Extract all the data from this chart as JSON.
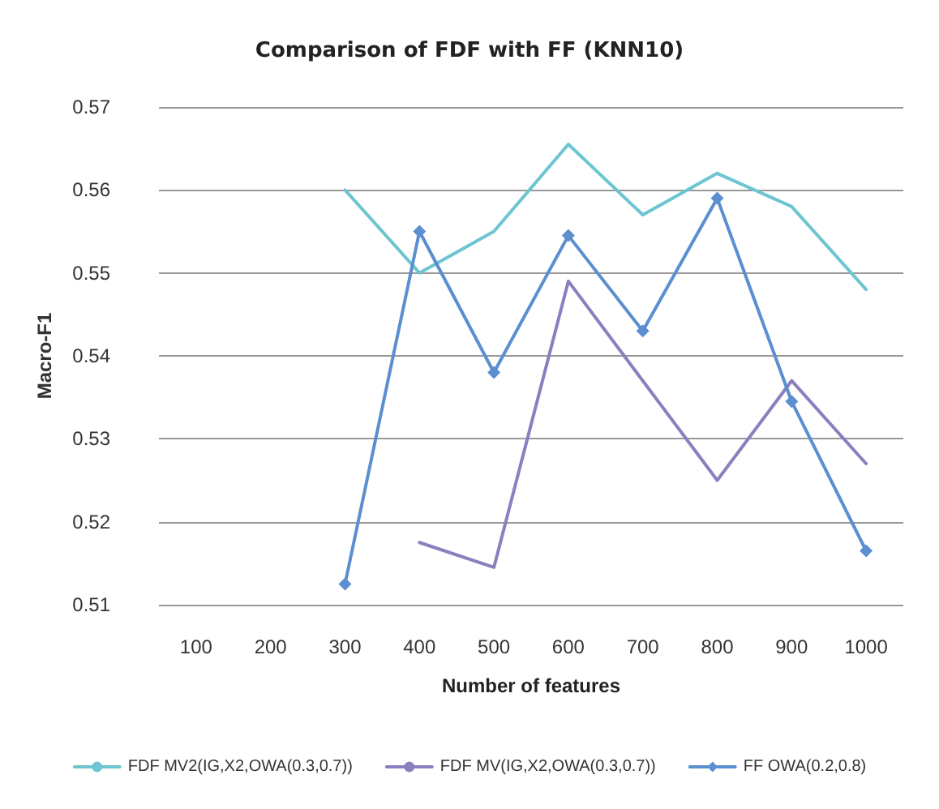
{
  "chart_data": {
    "type": "line",
    "title": "Comparison of FDF with FF (KNN10)",
    "xlabel": "Number of features",
    "ylabel": "Macro-F1",
    "categories": [
      "100",
      "200",
      "300",
      "400",
      "500",
      "600",
      "700",
      "800",
      "900",
      "1000"
    ],
    "series": [
      {
        "name": "FDF MV2(IG,X2,OWA(0.3,0.7))",
        "color": "#6cc5d0",
        "marker": "none",
        "values": [
          null,
          null,
          0.56,
          0.55,
          0.555,
          0.5655,
          0.557,
          0.562,
          0.558,
          0.548
        ]
      },
      {
        "name": "FDF MV(IG,X2,OWA(0.3,0.7))",
        "color": "#8c7fc0",
        "marker": "none",
        "values": [
          null,
          null,
          null,
          0.5175,
          0.5145,
          0.549,
          0.537,
          0.525,
          0.537,
          0.527
        ]
      },
      {
        "name": "FF OWA(0.2,0.8)",
        "color": "#5b8fd0",
        "marker": "diamond",
        "values": [
          null,
          null,
          0.5125,
          0.555,
          0.538,
          0.5545,
          0.543,
          0.559,
          0.5345,
          0.5165
        ]
      }
    ],
    "ylim": [
      0.51,
      0.57
    ],
    "yticks": [
      0.51,
      0.52,
      0.53,
      0.54,
      0.55,
      0.56,
      0.57
    ],
    "grid": "y",
    "legend": "bottom",
    "line_style": "solid"
  }
}
